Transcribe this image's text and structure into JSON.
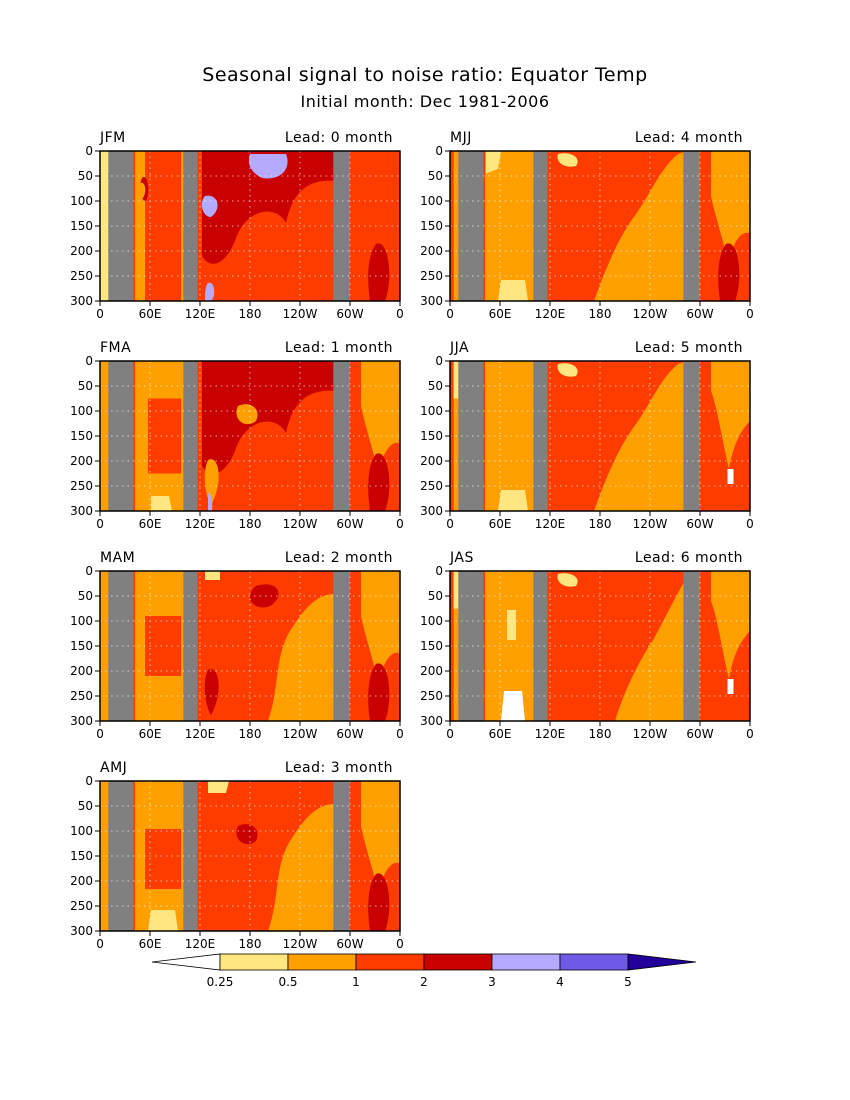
{
  "title": "Seasonal signal to noise ratio: Equator Temp",
  "subtitle": "Initial month: Dec 1981-2006",
  "colors": {
    "below_0.25": "#ffffff",
    "0.25-0.5": "#ffe680",
    "0.5-1": "#ffa000",
    "1-2": "#ff3c00",
    "2-3": "#c80000",
    "3-4": "#b4aaff",
    "4-5": "#6e5ae6",
    "above_5": "#22009a",
    "land": "#808080"
  },
  "chart_data": [
    {
      "type": "heatmap",
      "season": "JFM",
      "lead": "Lead: 0 month",
      "lead_months": 0,
      "xlabel": "",
      "ylabel": "",
      "xlim": [
        0,
        360
      ],
      "ylim": [
        300,
        0
      ],
      "xticks": [
        "0",
        "60E",
        "120E",
        "180",
        "120W",
        "60W",
        "0"
      ],
      "yticks": [
        "0",
        "50",
        "100",
        "150",
        "200",
        "250",
        "300"
      ],
      "land_lon_ranges": [
        [
          10,
          40
        ],
        [
          100,
          117
        ],
        [
          280,
          300
        ]
      ],
      "dominant_class": "1-2",
      "max_class": "3-4"
    },
    {
      "type": "heatmap",
      "season": "MJJ",
      "lead": "Lead: 4 month",
      "lead_months": 4,
      "xlabel": "",
      "ylabel": "",
      "xlim": [
        0,
        360
      ],
      "ylim": [
        300,
        0
      ],
      "xticks": [
        "0",
        "60E",
        "120E",
        "180",
        "120W",
        "60W",
        "0"
      ],
      "yticks": [
        "0",
        "50",
        "100",
        "150",
        "200",
        "250",
        "300"
      ],
      "land_lon_ranges": [
        [
          10,
          40
        ],
        [
          100,
          117
        ],
        [
          280,
          300
        ]
      ],
      "dominant_class": "1-2",
      "max_class": "2-3"
    },
    {
      "type": "heatmap",
      "season": "FMA",
      "lead": "Lead: 1 month",
      "lead_months": 1,
      "xlabel": "",
      "ylabel": "",
      "xlim": [
        0,
        360
      ],
      "ylim": [
        300,
        0
      ],
      "xticks": [
        "0",
        "60E",
        "120E",
        "180",
        "120W",
        "60W",
        "0"
      ],
      "yticks": [
        "0",
        "50",
        "100",
        "150",
        "200",
        "250",
        "300"
      ],
      "land_lon_ranges": [
        [
          10,
          40
        ],
        [
          100,
          117
        ],
        [
          280,
          300
        ]
      ],
      "dominant_class": "1-2",
      "max_class": "3-4"
    },
    {
      "type": "heatmap",
      "season": "JJA",
      "lead": "Lead: 5 month",
      "lead_months": 5,
      "xlabel": "",
      "ylabel": "",
      "xlim": [
        0,
        360
      ],
      "ylim": [
        300,
        0
      ],
      "xticks": [
        "0",
        "60E",
        "120E",
        "180",
        "120W",
        "60W",
        "0"
      ],
      "yticks": [
        "0",
        "50",
        "100",
        "150",
        "200",
        "250",
        "300"
      ],
      "land_lon_ranges": [
        [
          10,
          40
        ],
        [
          100,
          117
        ],
        [
          280,
          300
        ]
      ],
      "dominant_class": "1-2",
      "max_class": "1-2"
    },
    {
      "type": "heatmap",
      "season": "MAM",
      "lead": "Lead: 2 month",
      "lead_months": 2,
      "xlabel": "",
      "ylabel": "",
      "xlim": [
        0,
        360
      ],
      "ylim": [
        300,
        0
      ],
      "xticks": [
        "0",
        "60E",
        "120E",
        "180",
        "120W",
        "60W",
        "0"
      ],
      "yticks": [
        "0",
        "50",
        "100",
        "150",
        "200",
        "250",
        "300"
      ],
      "land_lon_ranges": [
        [
          10,
          40
        ],
        [
          100,
          117
        ],
        [
          280,
          300
        ]
      ],
      "dominant_class": "1-2",
      "max_class": "2-3"
    },
    {
      "type": "heatmap",
      "season": "JAS",
      "lead": "Lead: 6 month",
      "lead_months": 6,
      "xlabel": "",
      "ylabel": "",
      "xlim": [
        0,
        360
      ],
      "ylim": [
        300,
        0
      ],
      "xticks": [
        "0",
        "60E",
        "120E",
        "180",
        "120W",
        "60W",
        "0"
      ],
      "yticks": [
        "0",
        "50",
        "100",
        "150",
        "200",
        "250",
        "300"
      ],
      "land_lon_ranges": [
        [
          10,
          40
        ],
        [
          100,
          117
        ],
        [
          280,
          300
        ]
      ],
      "dominant_class": "1-2",
      "max_class": "1-2"
    },
    {
      "type": "heatmap",
      "season": "AMJ",
      "lead": "Lead: 3 month",
      "lead_months": 3,
      "xlabel": "",
      "ylabel": "",
      "xlim": [
        0,
        360
      ],
      "ylim": [
        300,
        0
      ],
      "xticks": [
        "0",
        "60E",
        "120E",
        "180",
        "120W",
        "60W",
        "0"
      ],
      "yticks": [
        "0",
        "50",
        "100",
        "150",
        "200",
        "250",
        "300"
      ],
      "land_lon_ranges": [
        [
          10,
          40
        ],
        [
          100,
          117
        ],
        [
          280,
          300
        ]
      ],
      "dominant_class": "1-2",
      "max_class": "2-3"
    }
  ],
  "colorbar": {
    "labels": [
      "0.25",
      "0.5",
      "1",
      "2",
      "3",
      "4",
      "5"
    ],
    "colors": [
      "#ffffff",
      "#ffe680",
      "#ffa000",
      "#ff3c00",
      "#c80000",
      "#b4aaff",
      "#6e5ae6",
      "#22009a"
    ]
  }
}
